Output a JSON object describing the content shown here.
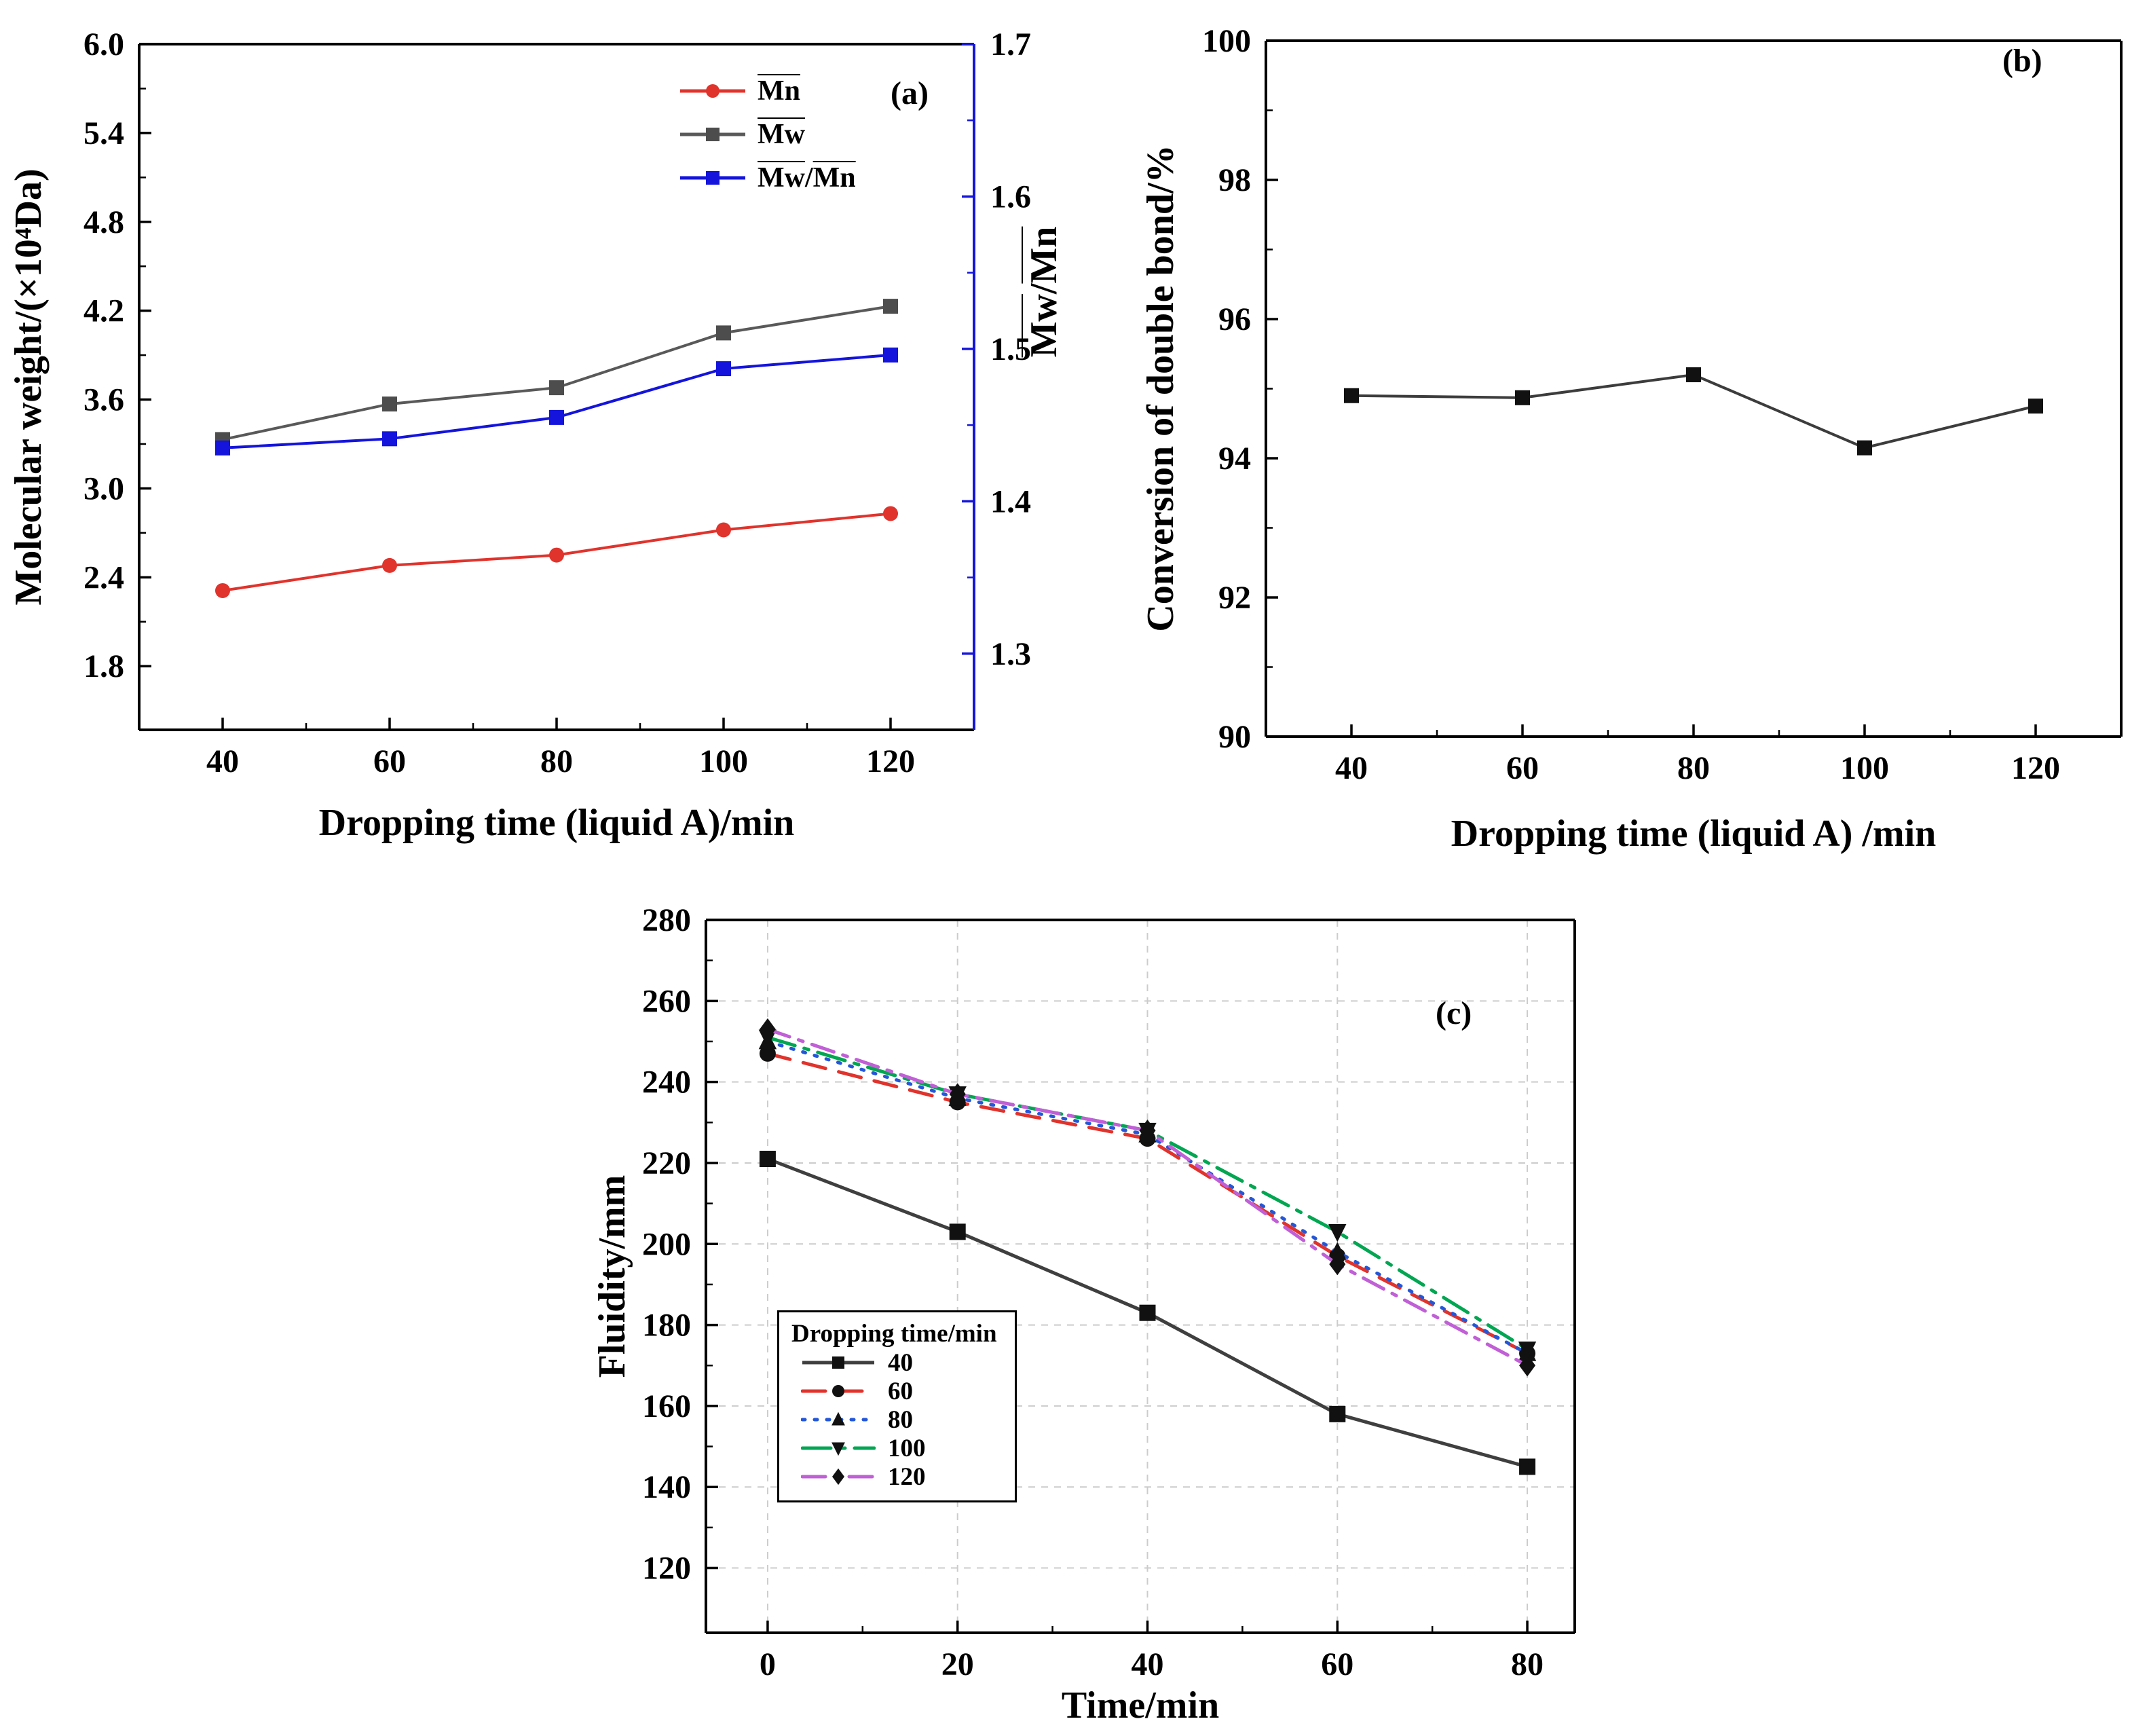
{
  "figure": {
    "background": "#ffffff"
  },
  "chart_data": [
    {
      "id": "a",
      "type": "line",
      "panel_label": "(a)",
      "xlabel": "Dropping time (liquid A)/min",
      "ylabel_left": "Molecular weight/(×10⁴Da)",
      "ylabel_right": "Mw/Mn",
      "x": [
        40,
        60,
        80,
        100,
        120
      ],
      "xlim": [
        30,
        130
      ],
      "xticks": [
        40,
        60,
        80,
        100,
        120
      ],
      "xtick_labels": [
        "40",
        "60",
        "80",
        "100",
        "120"
      ],
      "ylim_left": [
        1.37,
        6.0
      ],
      "yticks_left": [
        1.8,
        2.4,
        3.0,
        3.6,
        4.2,
        4.8,
        5.4,
        6.0
      ],
      "ytick_labels_left": [
        "1.8",
        "2.4",
        "3.0",
        "3.6",
        "4.2",
        "4.8",
        "5.4",
        "6.0"
      ],
      "ylim_right": [
        1.25,
        1.7
      ],
      "yticks_right": [
        1.3,
        1.4,
        1.5,
        1.6,
        1.7
      ],
      "ytick_labels_right": [
        "1.3",
        "1.4",
        "1.5",
        "1.6",
        "1.7"
      ],
      "right_axis_color": "#1414dc",
      "grid": false,
      "legend_position": "upper-right-inside",
      "series": [
        {
          "name": "Mn",
          "overline": true,
          "axis": "left",
          "color": "#e0332c",
          "marker": "circle",
          "marker_color": "#e0332c",
          "dash": "none",
          "values": [
            2.31,
            2.48,
            2.55,
            2.72,
            2.83
          ]
        },
        {
          "name": "Mw",
          "overline": true,
          "axis": "left",
          "color": "#595959",
          "marker": "square",
          "marker_color": "#4d4d4d",
          "dash": "none",
          "values": [
            3.33,
            3.57,
            3.68,
            4.05,
            4.23
          ]
        },
        {
          "name": "Mw/Mn",
          "overline": true,
          "axis": "right",
          "color": "#1414dc",
          "marker": "square",
          "marker_color": "#1414dc",
          "dash": "none",
          "values": [
            1.435,
            1.441,
            1.455,
            1.487,
            1.496
          ]
        }
      ]
    },
    {
      "id": "b",
      "type": "line",
      "panel_label": "(b)",
      "xlabel": "Dropping time (liquid A) /min",
      "ylabel": "Conversion of double bond/%",
      "x": [
        40,
        60,
        80,
        100,
        120
      ],
      "xlim": [
        30,
        130
      ],
      "xticks": [
        40,
        60,
        80,
        100,
        120
      ],
      "xtick_labels": [
        "40",
        "60",
        "80",
        "100",
        "120"
      ],
      "ylim": [
        90,
        100
      ],
      "yticks": [
        90,
        92,
        94,
        96,
        98,
        100
      ],
      "ytick_labels": [
        "90",
        "92",
        "94",
        "96",
        "98",
        "100"
      ],
      "grid": false,
      "series": [
        {
          "name": "Conversion of double bond",
          "axis": "left",
          "color": "#3c3c3c",
          "marker": "square",
          "marker_color": "#111111",
          "dash": "none",
          "values": [
            94.9,
            94.87,
            95.2,
            94.15,
            94.75
          ]
        }
      ]
    },
    {
      "id": "c",
      "type": "line",
      "panel_label": "(c)",
      "xlabel": "Time/min",
      "ylabel": "Fluidity/mm",
      "legend_title": "Dropping time/min",
      "x": [
        0,
        20,
        40,
        60,
        80
      ],
      "xlim": [
        -6.5,
        85
      ],
      "xticks": [
        0,
        20,
        40,
        60,
        80
      ],
      "xtick_labels": [
        "0",
        "20",
        "40",
        "60",
        "80"
      ],
      "ylim": [
        104,
        280
      ],
      "yticks": [
        120,
        140,
        160,
        180,
        200,
        220,
        240,
        260,
        280
      ],
      "ytick_labels": [
        "120",
        "140",
        "160",
        "180",
        "200",
        "220",
        "240",
        "260",
        "280"
      ],
      "grid": true,
      "grid_color": "#cccccc",
      "legend_position": "lower-left-inside",
      "series": [
        {
          "name": "40",
          "axis": "left",
          "color": "#3f3f3f",
          "marker": "square",
          "marker_color": "#111111",
          "dash": "none",
          "values": [
            221,
            203,
            183,
            158,
            145
          ]
        },
        {
          "name": "60",
          "axis": "left",
          "color": "#e0332c",
          "marker": "circle",
          "marker_color": "#111111",
          "dash": "34 20",
          "values": [
            247,
            235,
            226,
            197,
            173
          ]
        },
        {
          "name": "80",
          "axis": "left",
          "color": "#2457d8",
          "marker": "triangle-up",
          "marker_color": "#111111",
          "dash": "4 14",
          "values": [
            250,
            236,
            227,
            198,
            173
          ]
        },
        {
          "name": "100",
          "axis": "left",
          "color": "#00a651",
          "marker": "triangle-down",
          "marker_color": "#111111",
          "dash": "42 14 7 14",
          "values": [
            251,
            237,
            228,
            203,
            174
          ]
        },
        {
          "name": "120",
          "axis": "left",
          "color": "#c05fd6",
          "marker": "diamond",
          "marker_color": "#111111",
          "dash": "34 14 7 14",
          "values": [
            253,
            237,
            228,
            195,
            170
          ]
        }
      ]
    }
  ]
}
